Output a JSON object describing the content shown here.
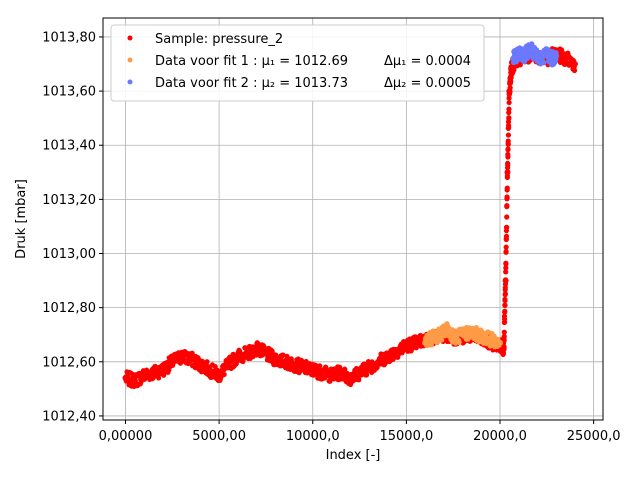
{
  "chart_data": {
    "type": "scatter",
    "xlabel": "Index [-]",
    "ylabel": "Druk [mbar]",
    "xlim": [
      -1200,
      25500
    ],
    "ylim": [
      1012.385,
      1013.87
    ],
    "grid": true,
    "legend_position": "top-left",
    "x_ticks": [
      {
        "value": 0,
        "label": "0,00000"
      },
      {
        "value": 5000,
        "label": "5000,00"
      },
      {
        "value": 10000,
        "label": "10000,0"
      },
      {
        "value": 15000,
        "label": "15000,0"
      },
      {
        "value": 20000,
        "label": "20000,0"
      },
      {
        "value": 25000,
        "label": "25000,0"
      }
    ],
    "y_ticks": [
      {
        "value": 1012.4,
        "label": "1012,40"
      },
      {
        "value": 1012.6,
        "label": "1012,60"
      },
      {
        "value": 1012.8,
        "label": "1012,80"
      },
      {
        "value": 1013.0,
        "label": "1013,00"
      },
      {
        "value": 1013.2,
        "label": "1013,20"
      },
      {
        "value": 1013.4,
        "label": "1013,40"
      },
      {
        "value": 1013.6,
        "label": "1013,60"
      },
      {
        "value": 1013.8,
        "label": "1013,80"
      }
    ],
    "series": [
      {
        "name": "Sample: pressure_2",
        "color": "#ff0000",
        "x": [
          0,
          500,
          1000,
          1500,
          2000,
          2500,
          3000,
          3500,
          4000,
          4500,
          5000,
          5500,
          6000,
          6500,
          7000,
          7500,
          8000,
          8500,
          9000,
          9500,
          10000,
          10500,
          11000,
          11500,
          12000,
          12500,
          13000,
          13500,
          14000,
          14500,
          15000,
          15500,
          16000,
          16500,
          17000,
          17500,
          18000,
          18500,
          19000,
          19500,
          20000,
          20200,
          20300,
          20400,
          20500,
          20600,
          20800,
          21000,
          21500,
          22000,
          22500,
          23000,
          23500,
          24000
        ],
        "y": [
          1012.54,
          1012.53,
          1012.55,
          1012.56,
          1012.57,
          1012.6,
          1012.62,
          1012.61,
          1012.59,
          1012.57,
          1012.55,
          1012.59,
          1012.62,
          1012.63,
          1012.65,
          1012.63,
          1012.61,
          1012.6,
          1012.59,
          1012.58,
          1012.57,
          1012.56,
          1012.55,
          1012.56,
          1012.54,
          1012.56,
          1012.58,
          1012.6,
          1012.62,
          1012.64,
          1012.66,
          1012.67,
          1012.68,
          1012.69,
          1012.7,
          1012.69,
          1012.69,
          1012.7,
          1012.68,
          1012.67,
          1012.66,
          1012.65,
          1012.9,
          1013.3,
          1013.6,
          1013.68,
          1013.71,
          1013.72,
          1013.73,
          1013.73,
          1013.72,
          1013.74,
          1013.72,
          1013.7
        ]
      },
      {
        "name": "Data voor fit 1 : μ1 = 1012.69",
        "color": "#ff9a47",
        "x": [
          16000,
          16400,
          16800,
          17200,
          17600,
          18000,
          18400,
          18800,
          19200,
          19600,
          20000
        ],
        "y": [
          1012.67,
          1012.69,
          1012.7,
          1012.72,
          1012.69,
          1012.7,
          1012.71,
          1012.7,
          1012.69,
          1012.68,
          1012.67
        ]
      },
      {
        "name": "Data voor fit 2 : μ2 = 1013.73",
        "color": "#6b79ff",
        "x": [
          20700,
          21000,
          21300,
          21600,
          21900,
          22200,
          22500,
          22800,
          23000
        ],
        "y": [
          1013.72,
          1013.74,
          1013.73,
          1013.76,
          1013.73,
          1013.72,
          1013.74,
          1013.72,
          1013.73
        ]
      }
    ],
    "legend": [
      {
        "label": "Sample: pressure_2",
        "extra": "",
        "color": "#ff0000"
      },
      {
        "label": "Data voor fit 1 : μ₁ = 1012.69",
        "extra": "Δμ₁ = 0.0004",
        "color": "#ff9a47"
      },
      {
        "label": "Data voor fit 2 : μ₂ = 1013.73",
        "extra": "Δμ₂ = 0.0005",
        "color": "#6b79ff"
      }
    ]
  }
}
